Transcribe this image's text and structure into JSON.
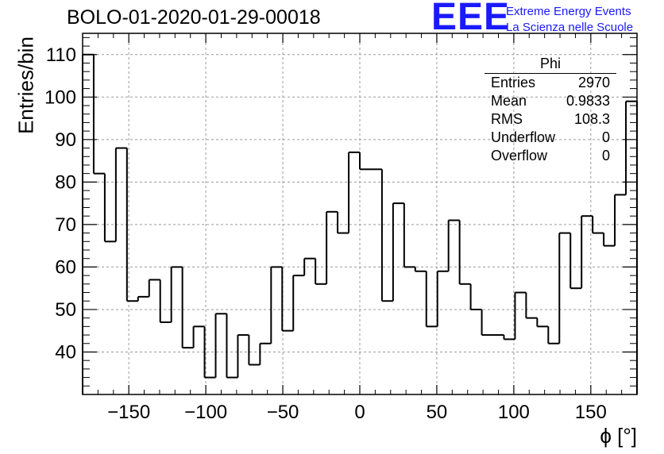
{
  "title": "BOLO-01-2020-01-29-00018",
  "logo": {
    "mark": "EEE",
    "line1": "Extreme Energy Events",
    "line2": "La Scienza nelle Scuole",
    "color": "#1a1aff"
  },
  "stats": {
    "title": "Phi",
    "rows": [
      {
        "label": "Entries",
        "value": "2970"
      },
      {
        "label": "Mean",
        "value": "0.9833"
      },
      {
        "label": "RMS",
        "value": "108.3"
      },
      {
        "label": "Underflow",
        "value": "0"
      },
      {
        "label": "Overflow",
        "value": "0"
      }
    ]
  },
  "chart_data": {
    "type": "bar",
    "style": "step-histogram",
    "title": "BOLO-01-2020-01-29-00018",
    "xlabel": "ϕ [°]",
    "ylabel": "Entries/bin",
    "xlim": [
      -180,
      180
    ],
    "ylim": [
      30,
      115
    ],
    "bin_width": 7.2,
    "grid": true,
    "x_ticks": [
      -150,
      -100,
      -50,
      0,
      50,
      100,
      150
    ],
    "x_tick_labels": [
      "−150",
      "−100",
      "−50",
      "0",
      "50",
      "100",
      "150"
    ],
    "y_ticks": [
      40,
      50,
      60,
      70,
      80,
      90,
      100,
      110
    ],
    "y_tick_labels": [
      "40",
      "50",
      "60",
      "70",
      "80",
      "90",
      "100",
      "110"
    ],
    "values": [
      110,
      82,
      66,
      88,
      52,
      53,
      57,
      47,
      60,
      41,
      46,
      34,
      49,
      34,
      44,
      37,
      42,
      60,
      45,
      58,
      62,
      56,
      73,
      68,
      87,
      83,
      83,
      52,
      75,
      60,
      59,
      46,
      59,
      71,
      56,
      50,
      44,
      44,
      43,
      54,
      48,
      46,
      42,
      68,
      55,
      72,
      68,
      65,
      77,
      99
    ],
    "line_color": "#000000",
    "grid_color": "#9a9a9a"
  }
}
